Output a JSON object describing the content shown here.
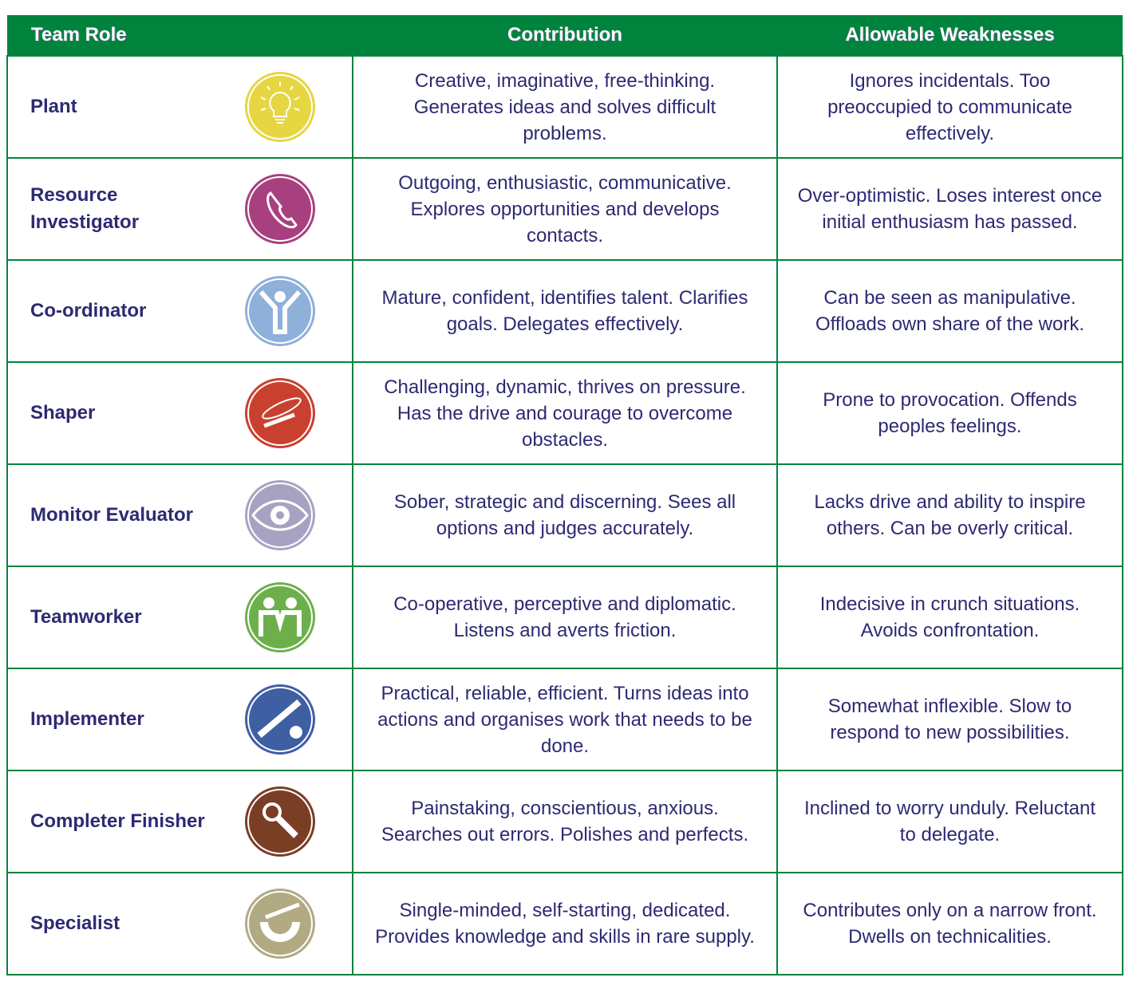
{
  "header": {
    "role": "Team Role",
    "contribution": "Contribution",
    "weaknesses": "Allowable Weaknesses"
  },
  "rows": [
    {
      "role": "Plant",
      "icon": "lightbulb-icon",
      "color": "#e6d642",
      "contribution": "Creative, imaginative, free-thinking. Generates ideas and solves difficult problems.",
      "weaknesses": "Ignores incidentals. Too preoccupied to communicate effectively."
    },
    {
      "role": "Resource Investigator",
      "icon": "telephone-icon",
      "color": "#a8407f",
      "contribution": "Outgoing, enthusiastic, communicative. Explores opportunities and develops contacts.",
      "weaknesses": "Over-optimistic. Loses interest once initial enthusiasm has passed."
    },
    {
      "role": "Co-ordinator",
      "icon": "person-arms-raised-icon",
      "color": "#8fb0d8",
      "contribution": "Mature, confident, identifies talent. Clarifies goals. Delegates effectively.",
      "weaknesses": "Can be seen as manipulative. Offloads own share of the work."
    },
    {
      "role": "Shaper",
      "icon": "whip-icon",
      "color": "#c9412e",
      "contribution": "Challenging, dynamic, thrives on pressure. Has the drive and courage to overcome obstacles.",
      "weaknesses": "Prone to provocation. Offends peoples feelings."
    },
    {
      "role": "Monitor Evaluator",
      "icon": "eye-icon",
      "color": "#a8a2c2",
      "contribution": "Sober, strategic and discerning. Sees all options and judges accurately.",
      "weaknesses": "Lacks drive and ability to inspire others. Can be overly critical."
    },
    {
      "role": "Teamworker",
      "icon": "people-holding-hands-icon",
      "color": "#6db04b",
      "contribution": "Co-operative, perceptive and diplomatic. Listens and averts friction.",
      "weaknesses": "Indecisive in crunch situations. Avoids confrontation."
    },
    {
      "role": "Implementer",
      "icon": "gears-icon",
      "color": "#3f5fa3",
      "contribution": "Practical, reliable, efficient. Turns ideas into actions and organises work that needs to be done.",
      "weaknesses": "Somewhat inflexible. Slow to respond to new possibilities."
    },
    {
      "role": "Completer Finisher",
      "icon": "magnifier-hand-icon",
      "color": "#7a3e25",
      "contribution": "Painstaking, conscientious, anxious. Searches out errors. Polishes and perfects.",
      "weaknesses": "Inclined to worry unduly. Reluctant to delegate."
    },
    {
      "role": "Specialist",
      "icon": "magnet-icon",
      "color": "#b1aa83",
      "contribution": "Single-minded, self-starting, dedicated. Provides knowledge and skills in rare supply.",
      "weaknesses": "Contributes only on a narrow front. Dwells on technicalities."
    }
  ]
}
